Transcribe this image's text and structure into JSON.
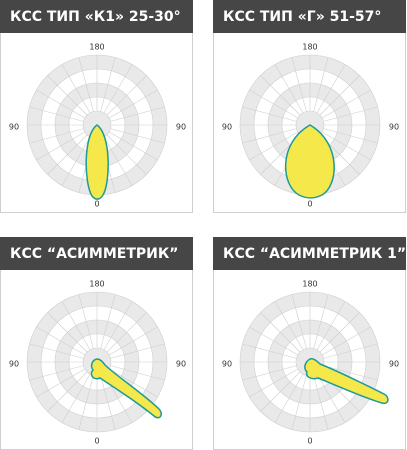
{
  "panels": [
    {
      "title": "КСС ТИП «К1» 25-30°",
      "labels": {
        "top": "180",
        "left": "90",
        "right": "90",
        "bottom": "0"
      }
    },
    {
      "title": "КСС ТИП «Г» 51-57°",
      "labels": {
        "top": "180",
        "left": "90",
        "right": "90",
        "bottom": "0"
      }
    },
    {
      "title": "КСС  “АСИММЕТРИК”",
      "labels": {
        "top": "180",
        "left": "90",
        "right": "90",
        "bottom": "0"
      }
    },
    {
      "title": "КСС  “АСИММЕТРИК 1”",
      "labels": {
        "top": "180",
        "left": "90",
        "right": "90",
        "bottom": "0"
      }
    }
  ]
}
